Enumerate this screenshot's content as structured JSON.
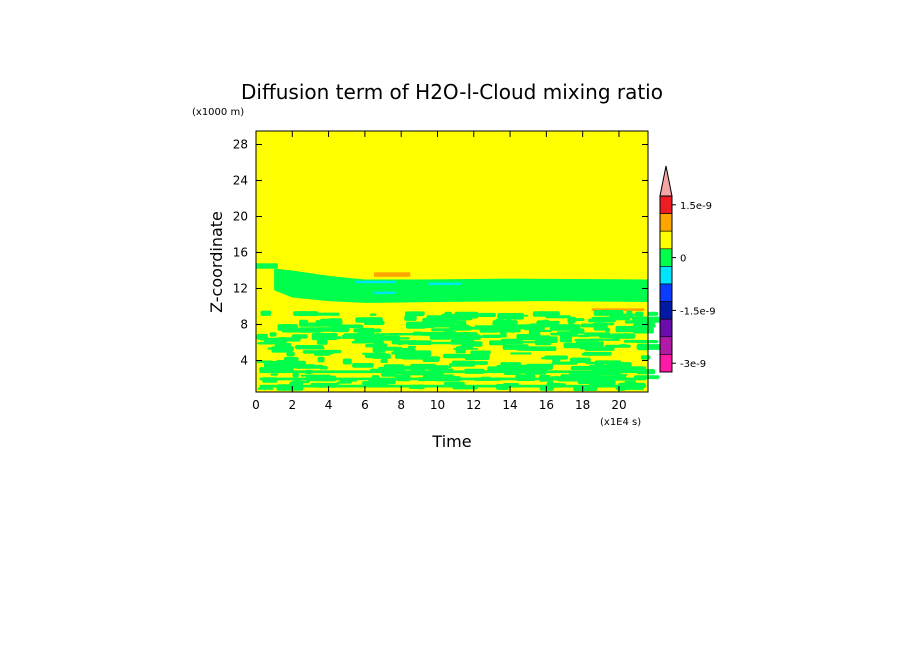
{
  "chart_data": {
    "type": "heatmap",
    "title": "Diffusion term of H2O-l-Cloud mixing ratio",
    "xlabel": "Time",
    "ylabel": "Z-coordinate",
    "x_unit": "(x1E4 s)",
    "y_unit": "(x1000 m)",
    "xlim": [
      0,
      21.6
    ],
    "ylim": [
      0.5,
      29.5
    ],
    "xticks": [
      "0",
      "2",
      "4",
      "6",
      "8",
      "10",
      "12",
      "14",
      "16",
      "18",
      "20"
    ],
    "yticks": [
      "4",
      "8",
      "12",
      "16",
      "20",
      "24",
      "28"
    ],
    "colorbar": {
      "labels": [
        "1.5e-9",
        "0",
        "-1.5e-9",
        "-3e-9"
      ],
      "colors": [
        "#f4a6a6",
        "#ee1c24",
        "#ffa500",
        "#ffff00",
        "#00ff4c",
        "#00e5ff",
        "#0a3cff",
        "#001aa6",
        "#6a0dad",
        "#b01aa6",
        "#ff1aa6"
      ]
    },
    "regions": [
      {
        "desc": "background",
        "value": "near zero (yellow)"
      },
      {
        "desc": "upper cloud band",
        "z_range": [
          10.5,
          13
        ],
        "t_range": [
          1,
          21.6
        ],
        "value": "slightly negative (green)"
      },
      {
        "desc": "lower mixed layer",
        "z_range": [
          0.5,
          9
        ],
        "t_range": [
          0,
          21.6
        ],
        "value": "mixed green/yellow"
      },
      {
        "desc": "positive patch",
        "z_range": [
          13.3,
          13.8
        ],
        "t_range": [
          6.5,
          8.5
        ],
        "value": "positive (orange)"
      },
      {
        "desc": "positive patch",
        "z_range": [
          9.5,
          9.8
        ],
        "t_range": [
          18.5,
          21.4
        ],
        "value": "positive (orange)"
      }
    ]
  }
}
